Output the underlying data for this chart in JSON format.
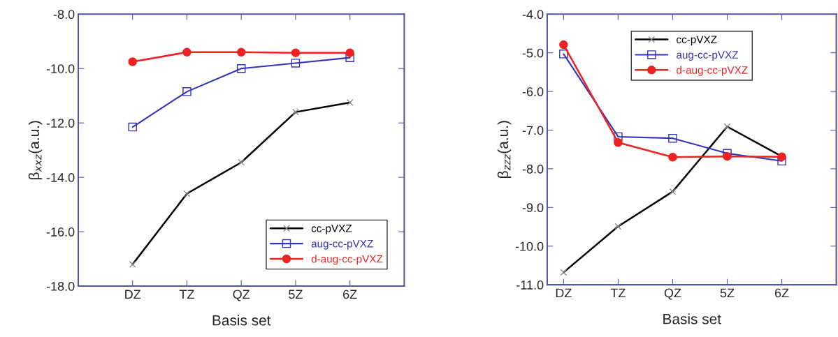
{
  "chart_data": [
    {
      "type": "line",
      "xlabel": "Basis set",
      "ylabel": "β$_{xxz}$(a.u.)",
      "categories": [
        "DZ",
        "TZ",
        "QZ",
        "5Z",
        "6Z"
      ],
      "ylim": [
        -18.0,
        -8.0
      ],
      "yticks": [
        {
          "value": -18,
          "label": "-18.0"
        },
        {
          "value": -16,
          "label": "-16.0"
        },
        {
          "value": -14,
          "label": "-14.0"
        },
        {
          "value": -12,
          "label": "-12.0"
        },
        {
          "value": -10,
          "label": "-10.0"
        },
        {
          "value": -8,
          "label": "-8.0"
        }
      ],
      "legend": "bottom right",
      "grid": false,
      "series": [
        {
          "name": "cc-pVXZ",
          "color": "#000000",
          "marker": "cross",
          "values": [
            -17.2,
            -14.6,
            -13.45,
            -11.6,
            -11.25
          ]
        },
        {
          "name": "aug-cc-pVXZ",
          "color": "#3333bb",
          "marker": "square",
          "values": [
            -12.15,
            -10.85,
            -10.0,
            -9.8,
            -9.6
          ]
        },
        {
          "name": "d-aug-cc-pVXZ",
          "color": "#ee2222",
          "marker": "circle",
          "values": [
            -9.75,
            -9.4,
            -9.4,
            -9.42,
            -9.42
          ]
        }
      ]
    },
    {
      "type": "line",
      "xlabel": "Basis set",
      "ylabel": "β$_{zzz}$(a.u.)",
      "categories": [
        "DZ",
        "TZ",
        "QZ",
        "5Z",
        "6Z"
      ],
      "ylim": [
        -11.0,
        -4.0
      ],
      "yticks": [
        {
          "value": -11,
          "label": "-11.0"
        },
        {
          "value": -10,
          "label": "-10.0"
        },
        {
          "value": -9,
          "label": "-9.0"
        },
        {
          "value": -8,
          "label": "-8.0"
        },
        {
          "value": -7,
          "label": "-7.0"
        },
        {
          "value": -6,
          "label": "-6.0"
        },
        {
          "value": -5,
          "label": "-5.0"
        },
        {
          "value": -4,
          "label": "-4.0"
        }
      ],
      "legend": "top",
      "grid": false,
      "series": [
        {
          "name": "cc-pVXZ",
          "color": "#000000",
          "marker": "cross",
          "values": [
            -10.68,
            -9.49,
            -8.59,
            -6.91,
            -7.68
          ]
        },
        {
          "name": "aug-cc-pVXZ",
          "color": "#3333bb",
          "marker": "square",
          "values": [
            -5.03,
            -7.17,
            -7.21,
            -7.6,
            -7.8
          ]
        },
        {
          "name": "d-aug-cc-pVXZ",
          "color": "#ee2222",
          "marker": "circle",
          "values": [
            -4.79,
            -7.32,
            -7.7,
            -7.68,
            -7.69
          ]
        }
      ]
    }
  ]
}
